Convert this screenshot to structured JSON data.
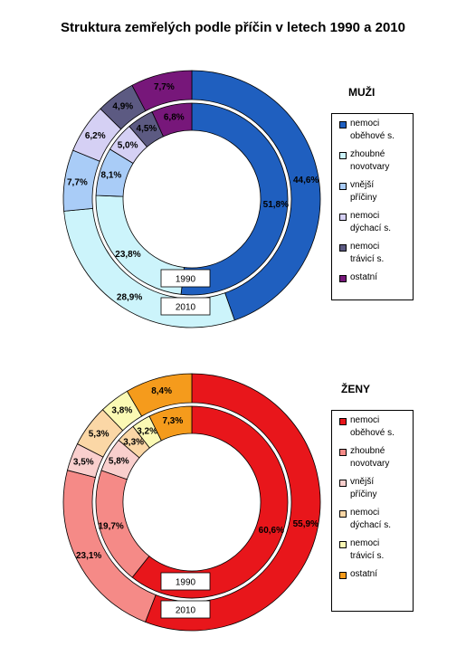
{
  "title": "Struktura zemřelých podle příčin v letech 1990 a 2010",
  "chart_data": [
    {
      "type": "donut",
      "label": "MUŽI",
      "categories": [
        "nemoci oběhové s.",
        "zhoubné novotvary",
        "vnější příčiny",
        "nemoci dýchací s.",
        "nemoci trávicí s.",
        "ostatní"
      ],
      "legend": [
        [
          "nemoci",
          "oběhové s."
        ],
        [
          "zhoubné",
          "novotvary"
        ],
        [
          "vnější",
          "příčiny"
        ],
        [
          "nemoci",
          "dýchací s."
        ],
        [
          "nemoci",
          "trávicí s."
        ],
        [
          "ostatní"
        ]
      ],
      "colors": [
        "#1f5fbf",
        "#ccf4fb",
        "#a9ccf7",
        "#d5d0f4",
        "#5c5a82",
        "#77177a"
      ],
      "series": [
        {
          "name": "1990",
          "ring": "inner",
          "values": [
            51.8,
            23.8,
            8.1,
            5.0,
            4.5,
            6.8
          ],
          "labels": [
            "51,8%",
            "23,8%",
            "8,1%",
            "5,0%",
            "4,5%",
            "6,8%"
          ]
        },
        {
          "name": "2010",
          "ring": "outer",
          "values": [
            44.6,
            28.9,
            7.7,
            6.2,
            4.9,
            7.7
          ],
          "labels": [
            "44,6%",
            "28,9%",
            "7,7%",
            "6,2%",
            "4,9%",
            "7,7%"
          ]
        }
      ]
    },
    {
      "type": "donut",
      "label": "ŽENY",
      "categories": [
        "nemoci oběhové s.",
        "zhoubné novotvary",
        "vnější příčiny",
        "nemoci dýchací s.",
        "nemoci trávicí s.",
        "ostatní"
      ],
      "legend": [
        [
          "nemoci",
          "oběhové s."
        ],
        [
          "zhoubné",
          "novotvary"
        ],
        [
          "vnější",
          "příčiny"
        ],
        [
          "nemoci",
          "dýchací s."
        ],
        [
          "nemoci",
          "trávicí s."
        ],
        [
          "ostatní"
        ]
      ],
      "colors": [
        "#e8161b",
        "#f58a87",
        "#f9cfcd",
        "#fbd7a6",
        "#fbf9b4",
        "#f59b1c"
      ],
      "series": [
        {
          "name": "1990",
          "ring": "inner",
          "values": [
            60.6,
            19.7,
            5.8,
            3.3,
            3.2,
            7.3
          ],
          "labels": [
            "60,6%",
            "19,7%",
            "5,8%",
            "3,3%",
            "3,2%",
            "7,3%"
          ]
        },
        {
          "name": "2010",
          "ring": "outer",
          "values": [
            55.9,
            23.1,
            3.5,
            5.3,
            3.8,
            8.4
          ],
          "labels": [
            "55,9%",
            "23,1%",
            "3,5%",
            "5,3%",
            "3,8%",
            "8,4%"
          ]
        }
      ]
    }
  ]
}
